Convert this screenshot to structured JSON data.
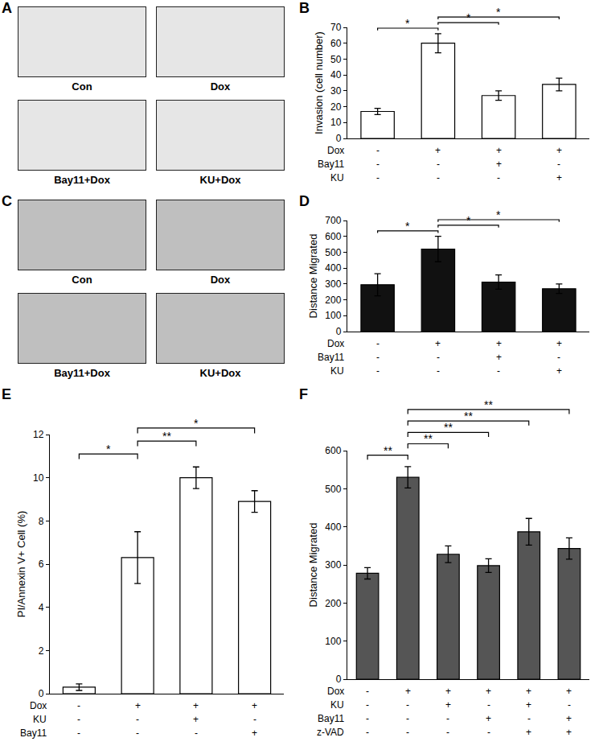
{
  "image_panels": [
    {
      "panel": "A",
      "labels": [
        "Con",
        "Dox",
        "Bay11+Dox",
        "KU+Dox"
      ]
    },
    {
      "panel": "C",
      "labels": [
        "Con",
        "Dox",
        "Bay11+Dox",
        "KU+Dox"
      ]
    }
  ],
  "chart_data": [
    {
      "panel": "B",
      "type": "bar",
      "categories": [
        null,
        null,
        null,
        null
      ],
      "values": [
        17,
        60,
        27,
        34
      ],
      "errors": [
        2,
        6,
        3,
        4
      ],
      "color": "#ffffff",
      "ylabel": "Invasion (cell number)",
      "ylim": [
        0,
        70
      ],
      "yticks": [
        0,
        10,
        20,
        30,
        40,
        50,
        60,
        70
      ],
      "grid": false,
      "tick_labels": "y",
      "conditions": [
        {
          "label": "Dox",
          "signs": [
            "-",
            "+",
            "+",
            "+"
          ]
        },
        {
          "label": "Bay11",
          "signs": [
            "-",
            "-",
            "+",
            "-"
          ]
        },
        {
          "label": "KU",
          "signs": [
            "-",
            "-",
            "-",
            "+"
          ]
        }
      ],
      "brackets": [
        {
          "from": 0,
          "to": 1,
          "label": "*"
        },
        {
          "from": 1,
          "to": 2,
          "label": "*"
        },
        {
          "from": 1,
          "to": 3,
          "label": "*"
        }
      ]
    },
    {
      "panel": "D",
      "type": "bar",
      "categories": [
        null,
        null,
        null,
        null
      ],
      "values": [
        295,
        520,
        312,
        270
      ],
      "errors": [
        70,
        80,
        45,
        30
      ],
      "color": "#111111",
      "ylabel": "Distance Migrated",
      "ylim": [
        0,
        700
      ],
      "yticks": [
        0,
        100,
        200,
        300,
        400,
        500,
        600,
        700
      ],
      "grid": false,
      "tick_labels": "y",
      "conditions": [
        {
          "label": "Dox",
          "signs": [
            "-",
            "+",
            "+",
            "+"
          ]
        },
        {
          "label": "Bay11",
          "signs": [
            "-",
            "-",
            "+",
            "-"
          ]
        },
        {
          "label": "KU",
          "signs": [
            "-",
            "-",
            "-",
            "+"
          ]
        }
      ],
      "brackets": [
        {
          "from": 0,
          "to": 1,
          "label": "*"
        },
        {
          "from": 1,
          "to": 2,
          "label": "*"
        },
        {
          "from": 1,
          "to": 3,
          "label": "*"
        }
      ]
    },
    {
      "panel": "E",
      "type": "bar",
      "categories": [
        null,
        null,
        null,
        null
      ],
      "values": [
        0.3,
        6.3,
        10,
        8.9
      ],
      "errors": [
        0.15,
        1.2,
        0.5,
        0.5
      ],
      "color": "#ffffff",
      "ylabel": "PI/Annexin V+ Cell (%)",
      "ylim": [
        0,
        12
      ],
      "yticks": [
        0,
        2,
        4,
        6,
        8,
        10,
        12
      ],
      "grid": false,
      "tick_labels": "y",
      "conditions": [
        {
          "label": "Dox",
          "signs": [
            "-",
            "+",
            "+",
            "+"
          ]
        },
        {
          "label": "KU",
          "signs": [
            "-",
            "-",
            "+",
            "-"
          ]
        },
        {
          "label": "Bay11",
          "signs": [
            "-",
            "-",
            "-",
            "+"
          ]
        }
      ],
      "brackets": [
        {
          "from": 0,
          "to": 1,
          "label": "*"
        },
        {
          "from": 1,
          "to": 2,
          "label": "**"
        },
        {
          "from": 1,
          "to": 3,
          "label": "*"
        }
      ]
    },
    {
      "panel": "F",
      "type": "bar",
      "categories": [
        null,
        null,
        null,
        null,
        null,
        null
      ],
      "values": [
        278,
        530,
        328,
        298,
        387,
        343
      ],
      "errors": [
        15,
        28,
        22,
        18,
        35,
        28
      ],
      "color": "#555555",
      "ylabel": "Distance Migrated",
      "ylim": [
        0,
        600
      ],
      "yticks": [
        0,
        100,
        200,
        300,
        400,
        500,
        600
      ],
      "grid": false,
      "tick_labels": "y",
      "conditions": [
        {
          "label": "Dox",
          "signs": [
            "-",
            "+",
            "+",
            "+",
            "+",
            "+"
          ]
        },
        {
          "label": "KU",
          "signs": [
            "-",
            "-",
            "+",
            "-",
            "+",
            "-"
          ]
        },
        {
          "label": "Bay11",
          "signs": [
            "-",
            "-",
            "-",
            "+",
            "-",
            "+"
          ]
        },
        {
          "label": "z-VAD",
          "signs": [
            "-",
            "-",
            "-",
            "-",
            "+",
            "+"
          ]
        }
      ],
      "brackets": [
        {
          "from": 0,
          "to": 1,
          "label": "**"
        },
        {
          "from": 1,
          "to": 2,
          "label": "**"
        },
        {
          "from": 1,
          "to": 3,
          "label": "**"
        },
        {
          "from": 1,
          "to": 4,
          "label": "**"
        },
        {
          "from": 1,
          "to": 5,
          "label": "**"
        }
      ]
    }
  ]
}
